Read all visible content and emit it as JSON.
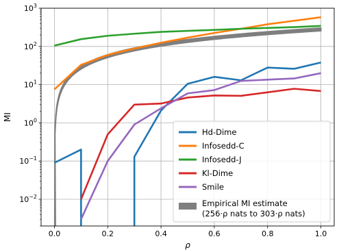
{
  "chart_data": {
    "type": "line",
    "xlabel": "ρ",
    "ylabel": "MI",
    "yscale": "log",
    "xlim": [
      -0.05,
      1.05
    ],
    "ylim": [
      0.002,
      1000
    ],
    "grid": true,
    "legend_position": "bottom-right",
    "x_ticks": [
      {
        "value": 0.0,
        "label": "0.0"
      },
      {
        "value": 0.2,
        "label": "0.2"
      },
      {
        "value": 0.4,
        "label": "0.4"
      },
      {
        "value": 0.6,
        "label": "0.6"
      },
      {
        "value": 0.8,
        "label": "0.8"
      },
      {
        "value": 1.0,
        "label": "1.0"
      }
    ],
    "y_ticks": [
      {
        "value": 0.01,
        "base": "10",
        "exp": "−2"
      },
      {
        "value": 0.1,
        "base": "10",
        "exp": "−1"
      },
      {
        "value": 1,
        "base": "10",
        "exp": "0"
      },
      {
        "value": 10,
        "base": "10",
        "exp": "1"
      },
      {
        "value": 100,
        "base": "10",
        "exp": "2"
      },
      {
        "value": 1000,
        "base": "10",
        "exp": "3"
      }
    ],
    "series": [
      {
        "name": "Hd-Dime",
        "color": "#1f77b4",
        "points": [
          [
            0.0,
            0.09
          ],
          [
            0.1,
            0.2
          ],
          [
            0.1,
            null
          ],
          [
            0.3,
            null
          ],
          [
            0.3,
            0.13
          ],
          [
            0.4,
            2.1
          ],
          [
            0.5,
            10.5
          ],
          [
            0.6,
            16
          ],
          [
            0.7,
            13
          ],
          [
            0.8,
            28
          ],
          [
            0.9,
            26
          ],
          [
            1.0,
            38
          ]
        ]
      },
      {
        "name": "Infosedd-C",
        "color": "#ff7f0e",
        "points": [
          [
            0.0,
            7.5
          ],
          [
            0.1,
            33
          ],
          [
            0.2,
            60
          ],
          [
            0.3,
            88
          ],
          [
            0.4,
            125
          ],
          [
            0.5,
            170
          ],
          [
            0.6,
            225
          ],
          [
            0.7,
            290
          ],
          [
            0.8,
            380
          ],
          [
            0.9,
            470
          ],
          [
            1.0,
            580
          ]
        ]
      },
      {
        "name": "Infosedd-J",
        "color": "#2ca02c",
        "points": [
          [
            0.0,
            105
          ],
          [
            0.1,
            155
          ],
          [
            0.2,
            190
          ],
          [
            0.3,
            215
          ],
          [
            0.4,
            240
          ],
          [
            0.5,
            255
          ],
          [
            0.6,
            270
          ],
          [
            0.7,
            290
          ],
          [
            0.8,
            305
          ],
          [
            0.9,
            320
          ],
          [
            1.0,
            345
          ]
        ]
      },
      {
        "name": "Kl-Dime",
        "color": "#d62728",
        "points": [
          [
            0.1,
            0.01
          ],
          [
            0.2,
            0.5
          ],
          [
            0.3,
            3.0
          ],
          [
            0.4,
            3.2
          ],
          [
            0.5,
            4.6
          ],
          [
            0.6,
            5.2
          ],
          [
            0.7,
            5.1
          ],
          [
            0.8,
            6.3
          ],
          [
            0.9,
            7.8
          ],
          [
            1.0,
            6.8
          ]
        ]
      },
      {
        "name": "Smile",
        "color": "#9467bd",
        "points": [
          [
            0.1,
            0.003
          ],
          [
            0.2,
            0.1
          ],
          [
            0.3,
            0.9
          ],
          [
            0.4,
            2.4
          ],
          [
            0.5,
            5.9
          ],
          [
            0.6,
            7.2
          ],
          [
            0.7,
            12.5
          ],
          [
            0.8,
            13.5
          ],
          [
            0.9,
            14.5
          ],
          [
            1.0,
            20
          ]
        ]
      }
    ],
    "band": {
      "name": "Empirical MI estimate",
      "name_line2": "(256·ρ nats to 303·ρ nats)",
      "color": "#7f7f7f",
      "lower_per_rho": 256,
      "upper_per_rho": 303
    }
  }
}
